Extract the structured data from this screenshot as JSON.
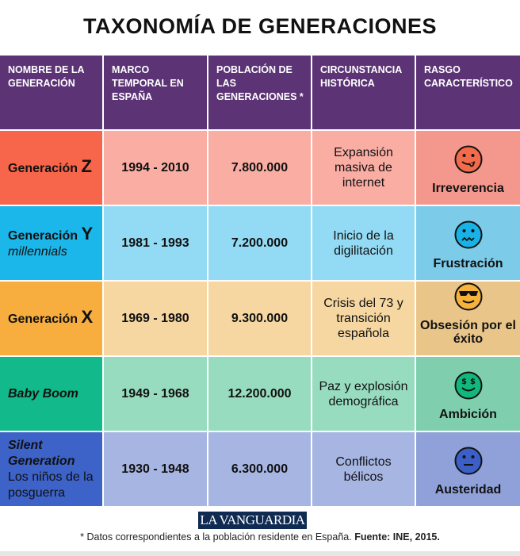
{
  "title": "TAXONOMÍA DE GENERACIONES",
  "headers": [
    "NOMBRE DE LA GENERACIÓN",
    "MARCO TEMPORAL EN ESPAÑA",
    "POBLACIÓN DE LAS GENERACIONES *",
    "CIRCUNSTANCIA HISTÓRICA",
    "RASGO CARACTERÍSTICO"
  ],
  "rows": [
    {
      "name_a": "Generación ",
      "name_b": "Z",
      "period": "1994 - 2010",
      "population": "7.800.000",
      "circumstance": "Expansión masiva de internet",
      "trait": "Irreverencia",
      "face": "tongue-face-icon",
      "gen_color": "#f7654a",
      "bg_color": "#f9ada3",
      "trait_bg": "#f4978c",
      "face_color": "#f26b4a"
    },
    {
      "name_a": "Generación ",
      "name_b": "Y",
      "name_sub": "millennials",
      "period": "1981 - 1993",
      "population": "7.200.000",
      "circumstance": "Inicio de la digilitación",
      "trait": "Frustración",
      "face": "worried-face-icon",
      "gen_color": "#1bb6ea",
      "bg_color": "#93dbf4",
      "trait_bg": "#7ccbe9",
      "face_color": "#19b2e6"
    },
    {
      "name_a": "Generación ",
      "name_b": "X",
      "period": "1969 - 1980",
      "population": "9.300.000",
      "circumstance": "Crisis del 73 y transición española",
      "trait": "Obsesión por el éxito",
      "face": "sunglasses-face-icon",
      "gen_color": "#f7ae3f",
      "bg_color": "#f6d7a2",
      "trait_bg": "#e9c58a",
      "face_color": "#f7b23a"
    },
    {
      "name_a": "Baby Boom",
      "period": "1949 - 1968",
      "population": "12.200.000",
      "circumstance": "Paz y explosión demográfica",
      "trait": "Ambición",
      "face": "money-eyes-face-icon",
      "gen_color": "#11b98b",
      "bg_color": "#98dcc0",
      "trait_bg": "#7fcfae",
      "face_color": "#12b77e"
    },
    {
      "name_a": "Silent Generation",
      "name_sub": "Los niños de la posguerra",
      "period": "1930 - 1948",
      "population": "6.300.000",
      "circumstance": "Conflictos bélicos",
      "trait": "Austeridad",
      "face": "neutral-face-icon",
      "gen_color": "#3d62c8",
      "bg_color": "#a6b5e2",
      "trait_bg": "#8fa1d8",
      "face_color": "#3b5fc6"
    }
  ],
  "logo": "LA VANGUARDIA",
  "footnote_a": "* Datos correspondientes a la población residente en España. ",
  "footnote_b": "Fuente: INE, 2015."
}
